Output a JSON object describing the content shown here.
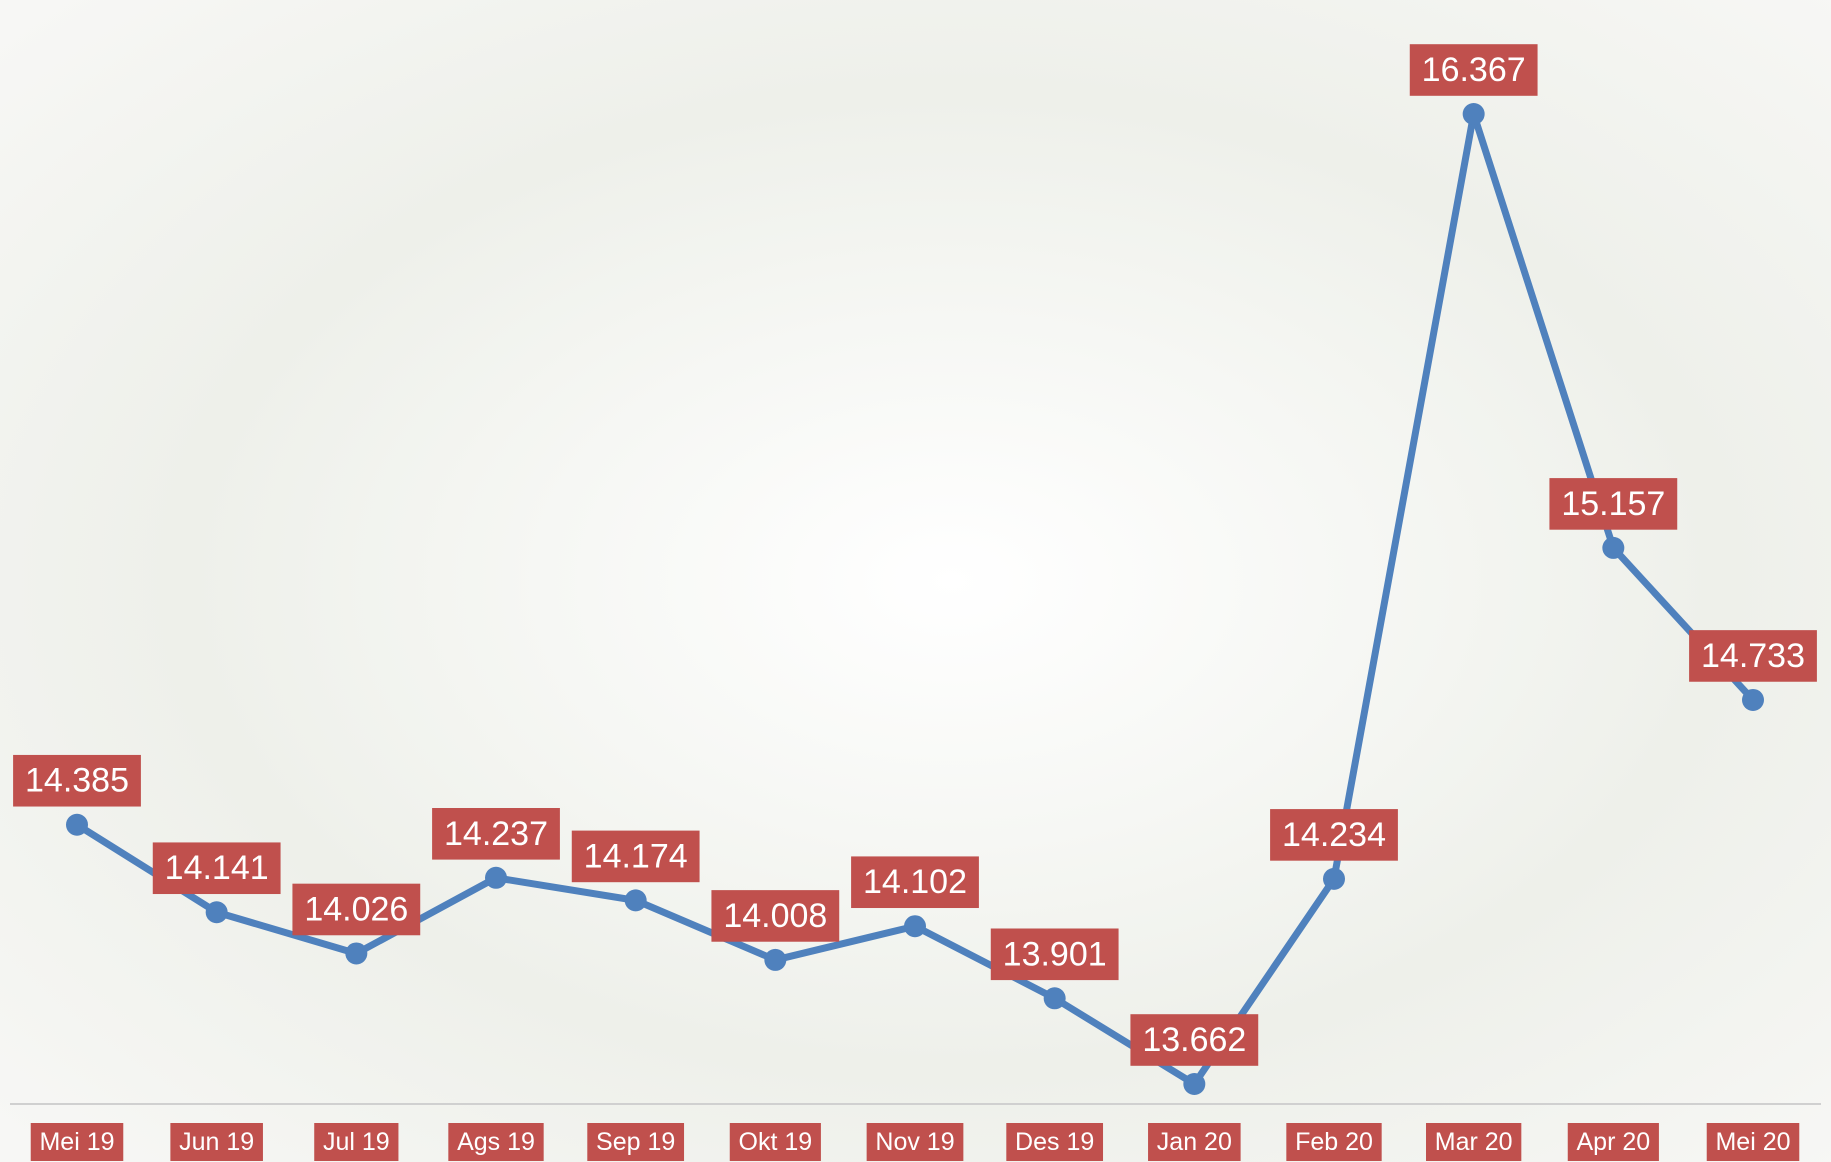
{
  "chart_data": {
    "type": "line",
    "categories": [
      "Mei 19",
      "Jun 19",
      "Jul 19",
      "Ags 19",
      "Sep 19",
      "Okt 19",
      "Nov 19",
      "Des 19",
      "Jan 20",
      "Feb 20",
      "Mar 20",
      "Apr 20",
      "Mei 20"
    ],
    "series": [
      {
        "color": "#4f81bd",
        "values": [
          14385,
          14141,
          14026,
          14237,
          14174,
          14008,
          14102,
          13901,
          13662,
          14234,
          16367,
          15157,
          14733
        ],
        "value_labels": [
          "14.385",
          "14.141",
          "14.026",
          "14.237",
          "14.174",
          "14.008",
          "14.102",
          "13.901",
          "13.662",
          "14.234",
          "16.367",
          "15.157",
          "14.733"
        ]
      }
    ],
    "label_color": "#c0504d"
  }
}
